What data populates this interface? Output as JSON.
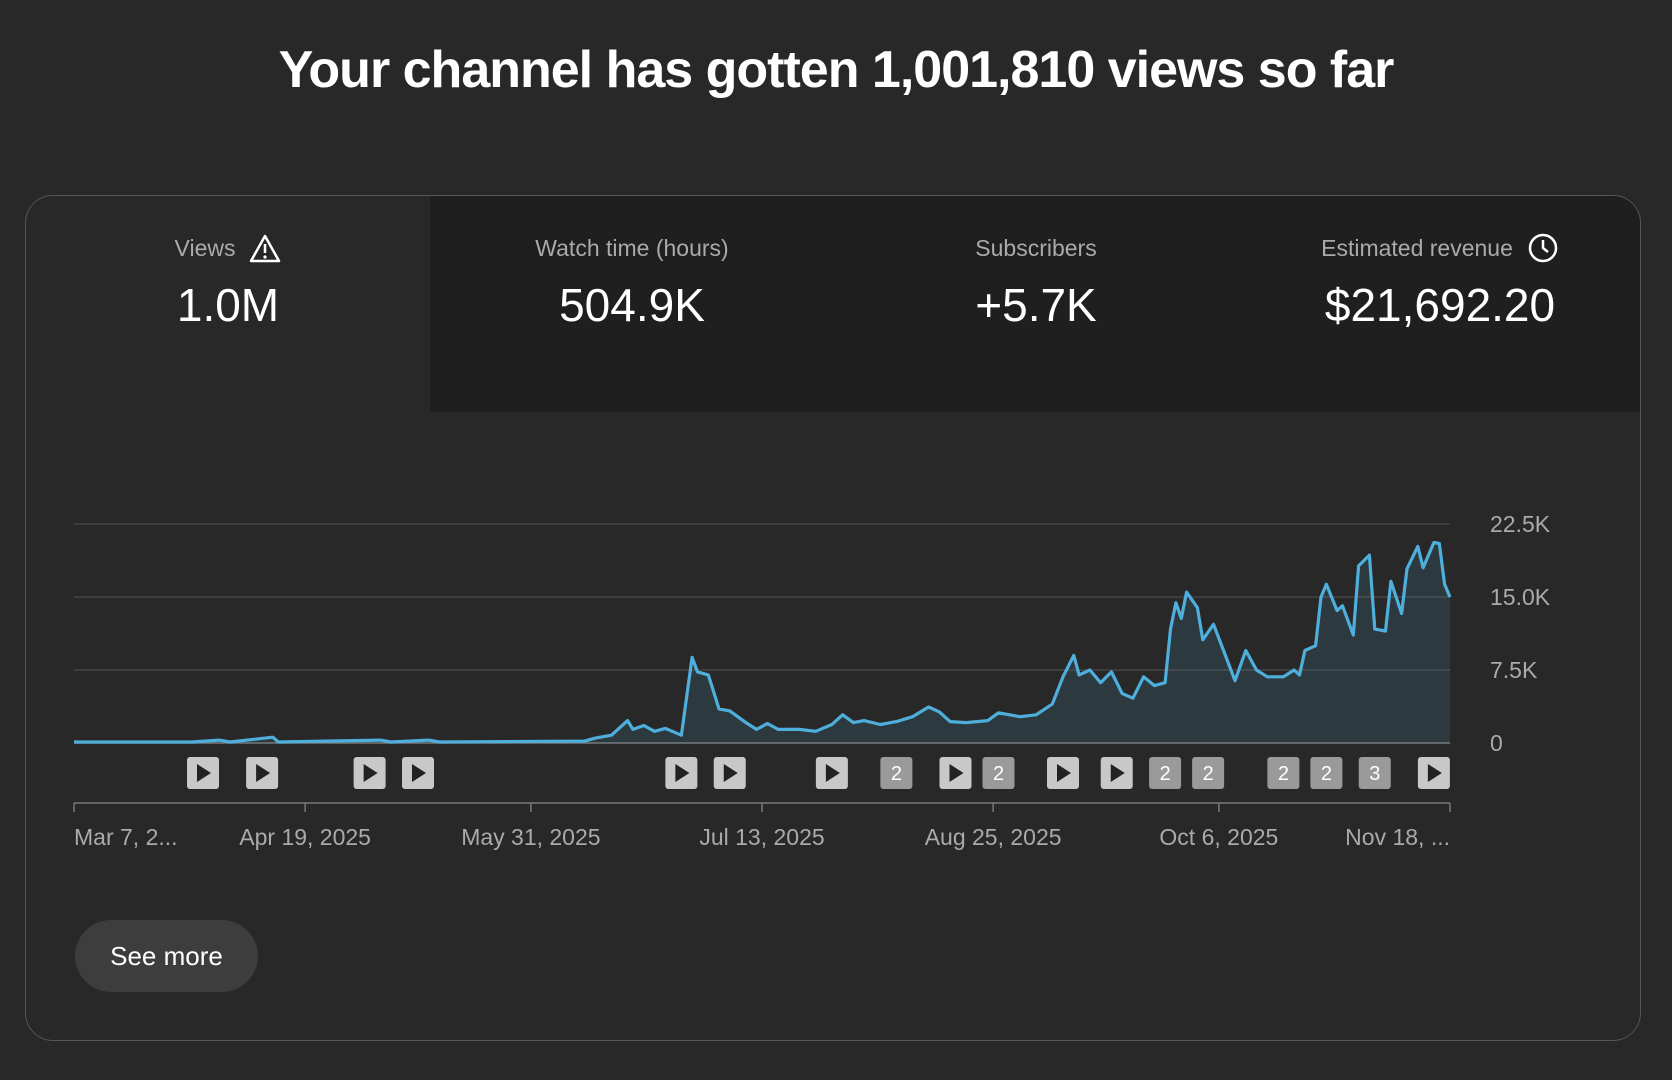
{
  "header": {
    "title": "Your channel has gotten 1,001,810 views so far"
  },
  "metrics": [
    {
      "label": "Views",
      "value": "1.0M"
    },
    {
      "label": "Watch time (hours)",
      "value": "504.9K"
    },
    {
      "label": "Subscribers",
      "value": "+5.7K"
    },
    {
      "label": "Estimated revenue",
      "value": "$21,692.20"
    }
  ],
  "chart_data": {
    "type": "line",
    "x": [
      "2025-03-07",
      "2025-03-29",
      "2025-04-03",
      "2025-04-05",
      "2025-04-13",
      "2025-04-14",
      "2025-05-03",
      "2025-05-05",
      "2025-05-12",
      "2025-05-14",
      "2025-06-10",
      "2025-06-12",
      "2025-06-15",
      "2025-06-18",
      "2025-06-19",
      "2025-06-21",
      "2025-06-23",
      "2025-06-25",
      "2025-06-28",
      "2025-06-30",
      "2025-07-01",
      "2025-07-03",
      "2025-07-05",
      "2025-07-07",
      "2025-07-10",
      "2025-07-12",
      "2025-07-14",
      "2025-07-16",
      "2025-07-20",
      "2025-07-23",
      "2025-07-26",
      "2025-07-28",
      "2025-07-30",
      "2025-08-01",
      "2025-08-04",
      "2025-08-07",
      "2025-08-10",
      "2025-08-13",
      "2025-08-15",
      "2025-08-17",
      "2025-08-20",
      "2025-08-24",
      "2025-08-26",
      "2025-08-30",
      "2025-09-02",
      "2025-09-05",
      "2025-09-07",
      "2025-09-09",
      "2025-09-10",
      "2025-09-12",
      "2025-09-14",
      "2025-09-16",
      "2025-09-18",
      "2025-09-20",
      "2025-09-22",
      "2025-09-24",
      "2025-09-26",
      "2025-09-27",
      "2025-09-28",
      "2025-09-29",
      "2025-09-30",
      "2025-10-02",
      "2025-10-03",
      "2025-10-05",
      "2025-10-07",
      "2025-10-09",
      "2025-10-11",
      "2025-10-13",
      "2025-10-15",
      "2025-10-18",
      "2025-10-20",
      "2025-10-21",
      "2025-10-22",
      "2025-10-24",
      "2025-10-25",
      "2025-10-26",
      "2025-10-28",
      "2025-10-29",
      "2025-10-31",
      "2025-11-01",
      "2025-11-03",
      "2025-11-04",
      "2025-11-06",
      "2025-11-07",
      "2025-11-09",
      "2025-11-10",
      "2025-11-12",
      "2025-11-13",
      "2025-11-15",
      "2025-11-16",
      "2025-11-17",
      "2025-11-18"
    ],
    "series": [
      {
        "name": "Views",
        "color": "#4fafdc",
        "values": [
          100,
          100,
          300,
          100,
          600,
          100,
          300,
          100,
          300,
          100,
          200,
          500,
          800,
          2300,
          1400,
          1800,
          1200,
          1500,
          800,
          8800,
          7300,
          7000,
          3500,
          3300,
          2100,
          1400,
          2000,
          1400,
          1400,
          1200,
          1900,
          2900,
          2100,
          2300,
          1900,
          2200,
          2700,
          3700,
          3200,
          2200,
          2100,
          2300,
          3100,
          2700,
          2900,
          4000,
          6800,
          9000,
          7000,
          7500,
          6200,
          7300,
          5100,
          4600,
          6800,
          5900,
          6200,
          11700,
          14400,
          12800,
          15500,
          13900,
          10600,
          12200,
          9300,
          6400,
          9500,
          7500,
          6800,
          6800,
          7500,
          7000,
          9500,
          10000,
          15000,
          16300,
          13600,
          14100,
          11100,
          18200,
          19300,
          11700,
          11500,
          16600,
          13300,
          17900,
          20200,
          18000,
          20600,
          20500,
          16300,
          15000
        ]
      }
    ],
    "xlim": [
      "2025-03-07",
      "2025-11-18"
    ],
    "xticks": [
      {
        "value": "2025-03-07",
        "label": "Mar 7, 2..."
      },
      {
        "value": "2025-04-19",
        "label": "Apr 19, 2025"
      },
      {
        "value": "2025-05-31",
        "label": "May 31, 2025"
      },
      {
        "value": "2025-07-13",
        "label": "Jul 13, 2025"
      },
      {
        "value": "2025-08-25",
        "label": "Aug 25, 2025"
      },
      {
        "value": "2025-10-06",
        "label": "Oct 6, 2025"
      },
      {
        "value": "2025-11-18",
        "label": "Nov 18, ..."
      }
    ],
    "ylim": [
      0,
      22500
    ],
    "yticks": [
      0,
      {
        "value": 7500,
        "label": "7.5K"
      },
      {
        "value": 15000,
        "label": "15.0K"
      },
      {
        "value": 22500,
        "label": "22.5K"
      }
    ],
    "grid": true,
    "marker_x": [
      "2025-03-31",
      "2025-04-11",
      "2025-05-01",
      "2025-05-10",
      "2025-06-28",
      "2025-07-07",
      "2025-07-26",
      "2025-08-07",
      "2025-08-18",
      "2025-08-26",
      "2025-09-07",
      "2025-09-17",
      "2025-09-26",
      "2025-10-04",
      "2025-10-18",
      "2025-10-26",
      "2025-11-04",
      "2025-11-15"
    ],
    "marker_counts": [
      null,
      null,
      null,
      null,
      null,
      null,
      null,
      2,
      null,
      2,
      null,
      null,
      2,
      2,
      2,
      2,
      3,
      null
    ]
  },
  "button": "See more"
}
